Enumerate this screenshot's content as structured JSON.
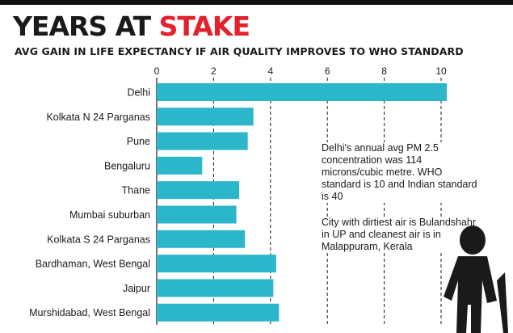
{
  "header": {
    "title_main": "YEARS AT ",
    "title_accent": "STAKE",
    "subtitle": "AVG GAIN IN LIFE EXPECTANCY IF AIR QUALITY IMPROVES TO WHO STANDARD"
  },
  "notes": {
    "note1": "Delhi's annual avg PM 2.5 concentration was 114 microns/cubic metre. WHO standard is 10 and Indian standard is 40",
    "note2": "City with dirtiest air is Bulandshahr in UP and cleanest air is in Malappuram, Kerala"
  },
  "colors": {
    "bar": "#2bb7c9",
    "accent": "#e3202b",
    "text": "#1a1a1a"
  },
  "chart_data": {
    "type": "bar",
    "orientation": "horizontal",
    "categories": [
      "Delhi",
      "Kolkata N 24 Parganas",
      "Pune",
      "Bengaluru",
      "Thane",
      "Mumbai suburban",
      "Kolkata S 24 Parganas",
      "Bardhaman, West Bengal",
      "Jaipur",
      "Murshidabad, West Bengal"
    ],
    "values": [
      10.2,
      3.4,
      3.2,
      1.6,
      2.9,
      2.8,
      3.1,
      4.2,
      4.1,
      4.3
    ],
    "ticks": [
      0,
      2,
      4,
      6,
      8,
      10
    ],
    "xlim": [
      0,
      11.8
    ],
    "grid": "dashed vertical"
  }
}
